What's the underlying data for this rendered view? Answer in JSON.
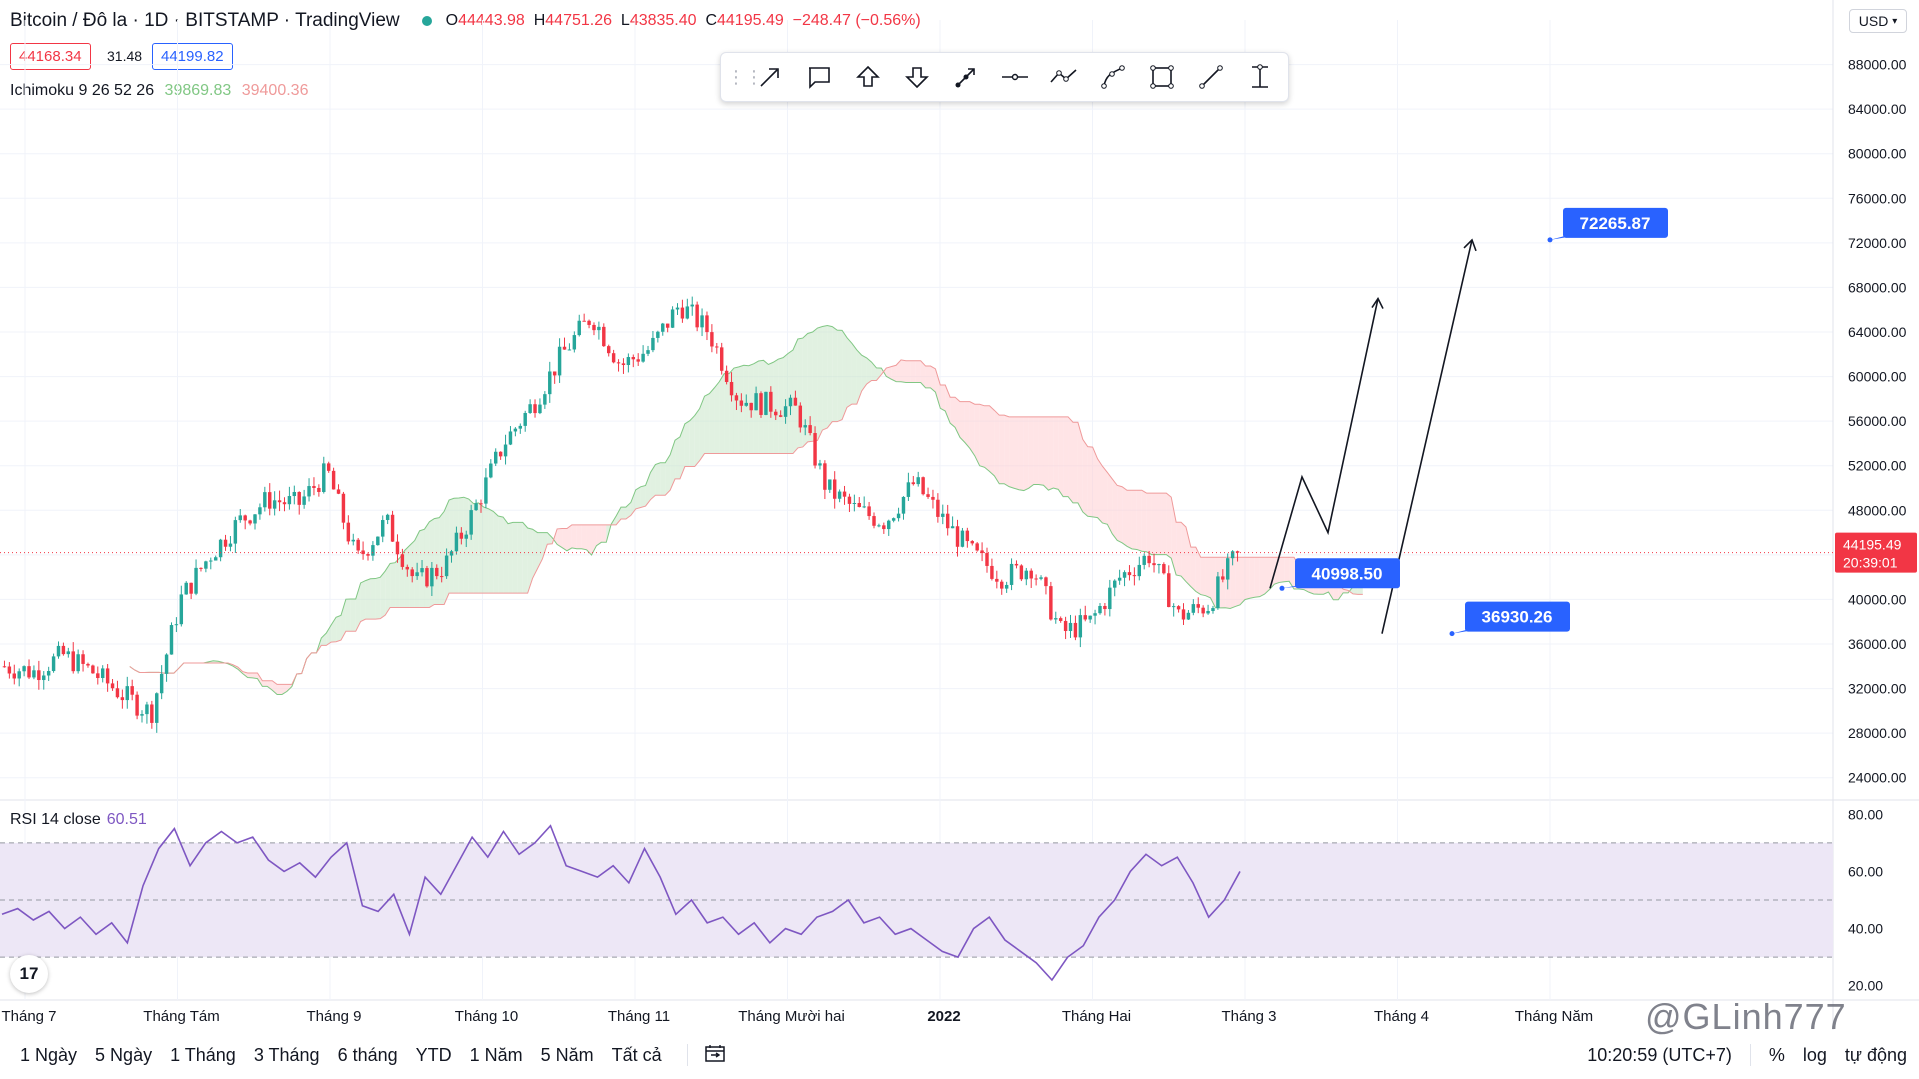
{
  "header": {
    "symbol": "Bitcoin / Đô la · 1D · BITSTAMP · TradingView",
    "open_label": "O",
    "open": "44443.98",
    "high_label": "H",
    "high": "44751.26",
    "low_label": "L",
    "low": "43835.40",
    "close_label": "C",
    "close": "44195.49",
    "change": "−248.47 (−0.56%)"
  },
  "quote": {
    "bid": "44168.34",
    "spread": "31.48",
    "ask": "44199.82"
  },
  "indicator": {
    "name": "Ichimoku 9 26 52 26",
    "value1": "39869.83",
    "value2": "39400.36"
  },
  "currency": "USD",
  "toolbar": {
    "tools": [
      "arrow-marker-icon",
      "callout-icon",
      "arrow-up-icon",
      "arrow-down-icon",
      "arrow-line-icon",
      "horizontal-line-icon",
      "path-icon",
      "curve-icon",
      "rectangle-icon",
      "trend-line-icon",
      "price-range-icon"
    ]
  },
  "rsi": {
    "label": "RSI 14 close",
    "value": "60.51"
  },
  "timeframes": [
    "1 Ngày",
    "5 Ngày",
    "1 Tháng",
    "3 Tháng",
    "6 tháng",
    "YTD",
    "1 Năm",
    "5 Năm",
    "Tất cả"
  ],
  "status": {
    "time": "10:20:59 (UTC+7)",
    "percent": "%",
    "log": "log",
    "auto": "tự động"
  },
  "watermark": "@GLinh777",
  "colors": {
    "up": "#26a69a",
    "down": "#f23645",
    "cloud_bull": "#c8e6c9",
    "cloud_bear": "#ffcdd2",
    "rsi": "#7e57c2",
    "rsi_band": "#ede7f6",
    "label": "#2962ff"
  },
  "chart_data": [
    {
      "type": "candlestick",
      "title": "Bitcoin / Đô la · 1D · BITSTAMP",
      "y_axis": {
        "ticks": [
          "88000.00",
          "84000.00",
          "80000.00",
          "76000.00",
          "72000.00",
          "68000.00",
          "64000.00",
          "60000.00",
          "56000.00",
          "52000.00",
          "48000.00",
          "44000.00",
          "40000.00",
          "36000.00",
          "32000.00",
          "28000.00",
          "24000.00"
        ],
        "range": [
          22000,
          92000
        ]
      },
      "x_axis": {
        "ticks": [
          "Tháng 7",
          "Tháng Tám",
          "Tháng 9",
          "Tháng 10",
          "Tháng 11",
          "Tháng Mười hai",
          "2022",
          "Tháng Hai",
          "Tháng 3",
          "Tháng 4",
          "Tháng Năm"
        ]
      },
      "last_price": "44195.49",
      "countdown": "20:39:01",
      "price_path": [
        [
          "Tháng 7",
          34000
        ],
        [
          "Tháng 7",
          33500
        ],
        [
          "Tháng 7",
          35000
        ],
        [
          "Tháng 7",
          33500
        ],
        [
          "Tháng 7",
          31500
        ],
        [
          "Tháng 7",
          29800
        ],
        [
          "Tháng Tám",
          40000
        ],
        [
          "Tháng Tám",
          44000
        ],
        [
          "Tháng Tám",
          47000
        ],
        [
          "Tháng Tám",
          49000
        ],
        [
          "Tháng 9",
          48500
        ],
        [
          "Tháng 9",
          51500
        ],
        [
          "Tháng 9",
          43500
        ],
        [
          "Tháng 9",
          47000
        ],
        [
          "Tháng 9",
          41500
        ],
        [
          "Tháng 10",
          43000
        ],
        [
          "Tháng 10",
          48000
        ],
        [
          "Tháng 10",
          54000
        ],
        [
          "Tháng 10",
          57500
        ],
        [
          "Tháng 10",
          62000
        ],
        [
          "Tháng 11",
          65500
        ],
        [
          "Tháng 11",
          61000
        ],
        [
          "Tháng 11",
          62500
        ],
        [
          "Tháng 11",
          66500
        ],
        [
          "Tháng 11",
          64000
        ],
        [
          "Tháng 11",
          58000
        ],
        [
          "Tháng Mười hai",
          57500
        ],
        [
          "Tháng Mười hai",
          57000
        ],
        [
          "Tháng Mười hai",
          50000
        ],
        [
          "Tháng Mười hai",
          48000
        ],
        [
          "Tháng Mười hai",
          47000
        ],
        [
          "Tháng Mười hai",
          50500
        ],
        [
          "2022",
          47000
        ],
        [
          "2022",
          44000
        ],
        [
          "2022",
          42000
        ],
        [
          "2022",
          43000
        ],
        [
          "Tháng Hai",
          37000
        ],
        [
          "Tháng Hai",
          38000
        ],
        [
          "Tháng Hai",
          42000
        ],
        [
          "Tháng Hai",
          44000
        ],
        [
          "Tháng 3",
          38500
        ],
        [
          "Tháng 3",
          39500
        ],
        [
          "Tháng 3",
          44195
        ]
      ],
      "annotations": [
        {
          "type": "price-label",
          "text": "72265.87",
          "price": 72265.87
        },
        {
          "type": "price-label",
          "text": "40998.50",
          "price": 40998.5
        },
        {
          "type": "price-label",
          "text": "36930.26",
          "price": 36930.26
        },
        {
          "type": "projection-path",
          "points": [
            40998.5,
            51000,
            46000,
            67000
          ]
        },
        {
          "type": "projection-line",
          "points": [
            36930.26,
            72265.87
          ]
        }
      ]
    },
    {
      "type": "line",
      "title": "RSI 14 close",
      "y_axis": {
        "ticks": [
          "80.00",
          "60.00",
          "40.00",
          "20.00"
        ],
        "range": [
          15,
          85
        ]
      },
      "bands": [
        70,
        50,
        30
      ],
      "series": [
        {
          "name": "RSI 14 close",
          "values": [
            45,
            47,
            43,
            46,
            40,
            44,
            38,
            42,
            35,
            55,
            68,
            75,
            62,
            70,
            74,
            70,
            72,
            64,
            60,
            63,
            58,
            65,
            70,
            48,
            46,
            52,
            38,
            58,
            52,
            62,
            72,
            65,
            74,
            66,
            70,
            76,
            62,
            60,
            58,
            62,
            56,
            68,
            58,
            45,
            50,
            42,
            44,
            38,
            42,
            35,
            40,
            38,
            44,
            46,
            50,
            42,
            44,
            38,
            40,
            36,
            32,
            30,
            40,
            44,
            36,
            32,
            28,
            22,
            30,
            34,
            44,
            50,
            60,
            66,
            62,
            65,
            56,
            44,
            50,
            60
          ]
        }
      ]
    }
  ]
}
